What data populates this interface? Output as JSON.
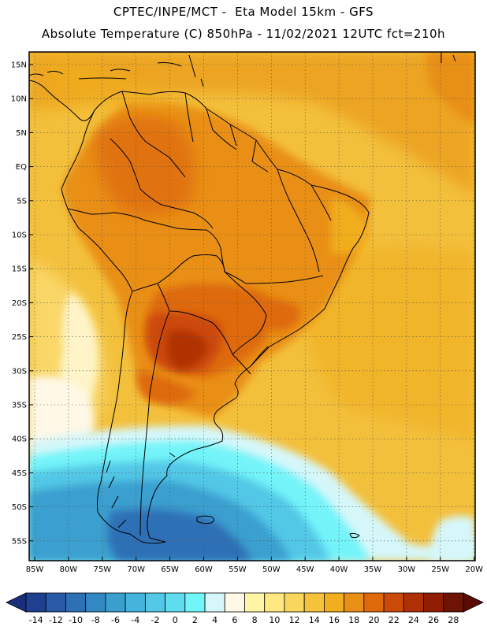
{
  "header": {
    "line1": "CPTEC/INPE/MCT -  Eta Model 15km - GFS",
    "line2": "Absolute Temperature (C) 850hPa - 11/02/2021 12UTC fct=210h"
  },
  "map": {
    "lat_labels": [
      "15N",
      "10N",
      "5N",
      "EQ",
      "5S",
      "10S",
      "15S",
      "20S",
      "25S",
      "30S",
      "35S",
      "40S",
      "45S",
      "50S",
      "55S"
    ],
    "lon_labels": [
      "85W",
      "80W",
      "75W",
      "70W",
      "65W",
      "60W",
      "55W",
      "50W",
      "45W",
      "40W",
      "35W",
      "30W",
      "25W",
      "20W"
    ]
  },
  "colorbar": {
    "labels": [
      "-14",
      "-12",
      "-10",
      "-8",
      "-6",
      "-4",
      "-2",
      "0",
      "2",
      "4",
      "6",
      "8",
      "10",
      "12",
      "14",
      "16",
      "18",
      "20",
      "22",
      "24",
      "26",
      "28"
    ],
    "colors": [
      "#1f3f8f",
      "#2a5aa6",
      "#2e70b5",
      "#3288c2",
      "#3a9fcf",
      "#45b4dc",
      "#52c7e6",
      "#5fdcee",
      "#73f4f9",
      "#d6f7fa",
      "#fff8e6",
      "#fff5a6",
      "#fde882",
      "#f9d65e",
      "#f5c23c",
      "#f1ae1f",
      "#e98f16",
      "#de6a0c",
      "#cc4a08",
      "#b03005",
      "#8f1e04",
      "#6e1404"
    ],
    "under_color": "#1a2f7a",
    "over_color": "#5a0b05"
  },
  "colors": {
    "frame": "#000000",
    "ocean_base": "#f2bd3a",
    "land_base": "#e9941a"
  }
}
